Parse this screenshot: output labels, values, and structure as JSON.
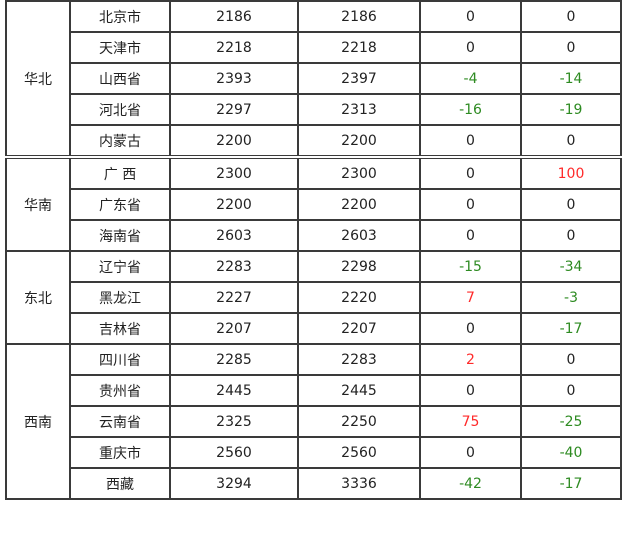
{
  "colors": {
    "positive": "#ff2a2a",
    "negative": "#2e8b22",
    "neutral": "#222222"
  },
  "groups": [
    {
      "region": "华北",
      "rows": [
        {
          "province": "北京市",
          "v1": "2186",
          "v2": "2186",
          "c1": "0",
          "c2": "0"
        },
        {
          "province": "天津市",
          "v1": "2218",
          "v2": "2218",
          "c1": "0",
          "c2": "0"
        },
        {
          "province": "山西省",
          "v1": "2393",
          "v2": "2397",
          "c1": "-4",
          "c2": "-14"
        },
        {
          "province": "河北省",
          "v1": "2297",
          "v2": "2313",
          "c1": "-16",
          "c2": "-19"
        },
        {
          "province": "内蒙古",
          "v1": "2200",
          "v2": "2200",
          "c1": "0",
          "c2": "0"
        }
      ]
    },
    {
      "region": "华南",
      "rows": [
        {
          "province": "广 西",
          "v1": "2300",
          "v2": "2300",
          "c1": "0",
          "c2": "100"
        },
        {
          "province": "广东省",
          "v1": "2200",
          "v2": "2200",
          "c1": "0",
          "c2": "0"
        },
        {
          "province": "海南省",
          "v1": "2603",
          "v2": "2603",
          "c1": "0",
          "c2": "0"
        }
      ]
    },
    {
      "region": "东北",
      "rows": [
        {
          "province": "辽宁省",
          "v1": "2283",
          "v2": "2298",
          "c1": "-15",
          "c2": "-34"
        },
        {
          "province": "黑龙江",
          "v1": "2227",
          "v2": "2220",
          "c1": "7",
          "c2": "-3"
        },
        {
          "province": "吉林省",
          "v1": "2207",
          "v2": "2207",
          "c1": "0",
          "c2": "-17"
        }
      ]
    },
    {
      "region": "西南",
      "rows": [
        {
          "province": "四川省",
          "v1": "2285",
          "v2": "2283",
          "c1": "2",
          "c2": "0"
        },
        {
          "province": "贵州省",
          "v1": "2445",
          "v2": "2445",
          "c1": "0",
          "c2": "0"
        },
        {
          "province": "云南省",
          "v1": "2325",
          "v2": "2250",
          "c1": "75",
          "c2": "-25"
        },
        {
          "province": "重庆市",
          "v1": "2560",
          "v2": "2560",
          "c1": "0",
          "c2": "-40"
        },
        {
          "province": "西藏",
          "v1": "3294",
          "v2": "3336",
          "c1": "-42",
          "c2": "-17"
        }
      ]
    }
  ]
}
